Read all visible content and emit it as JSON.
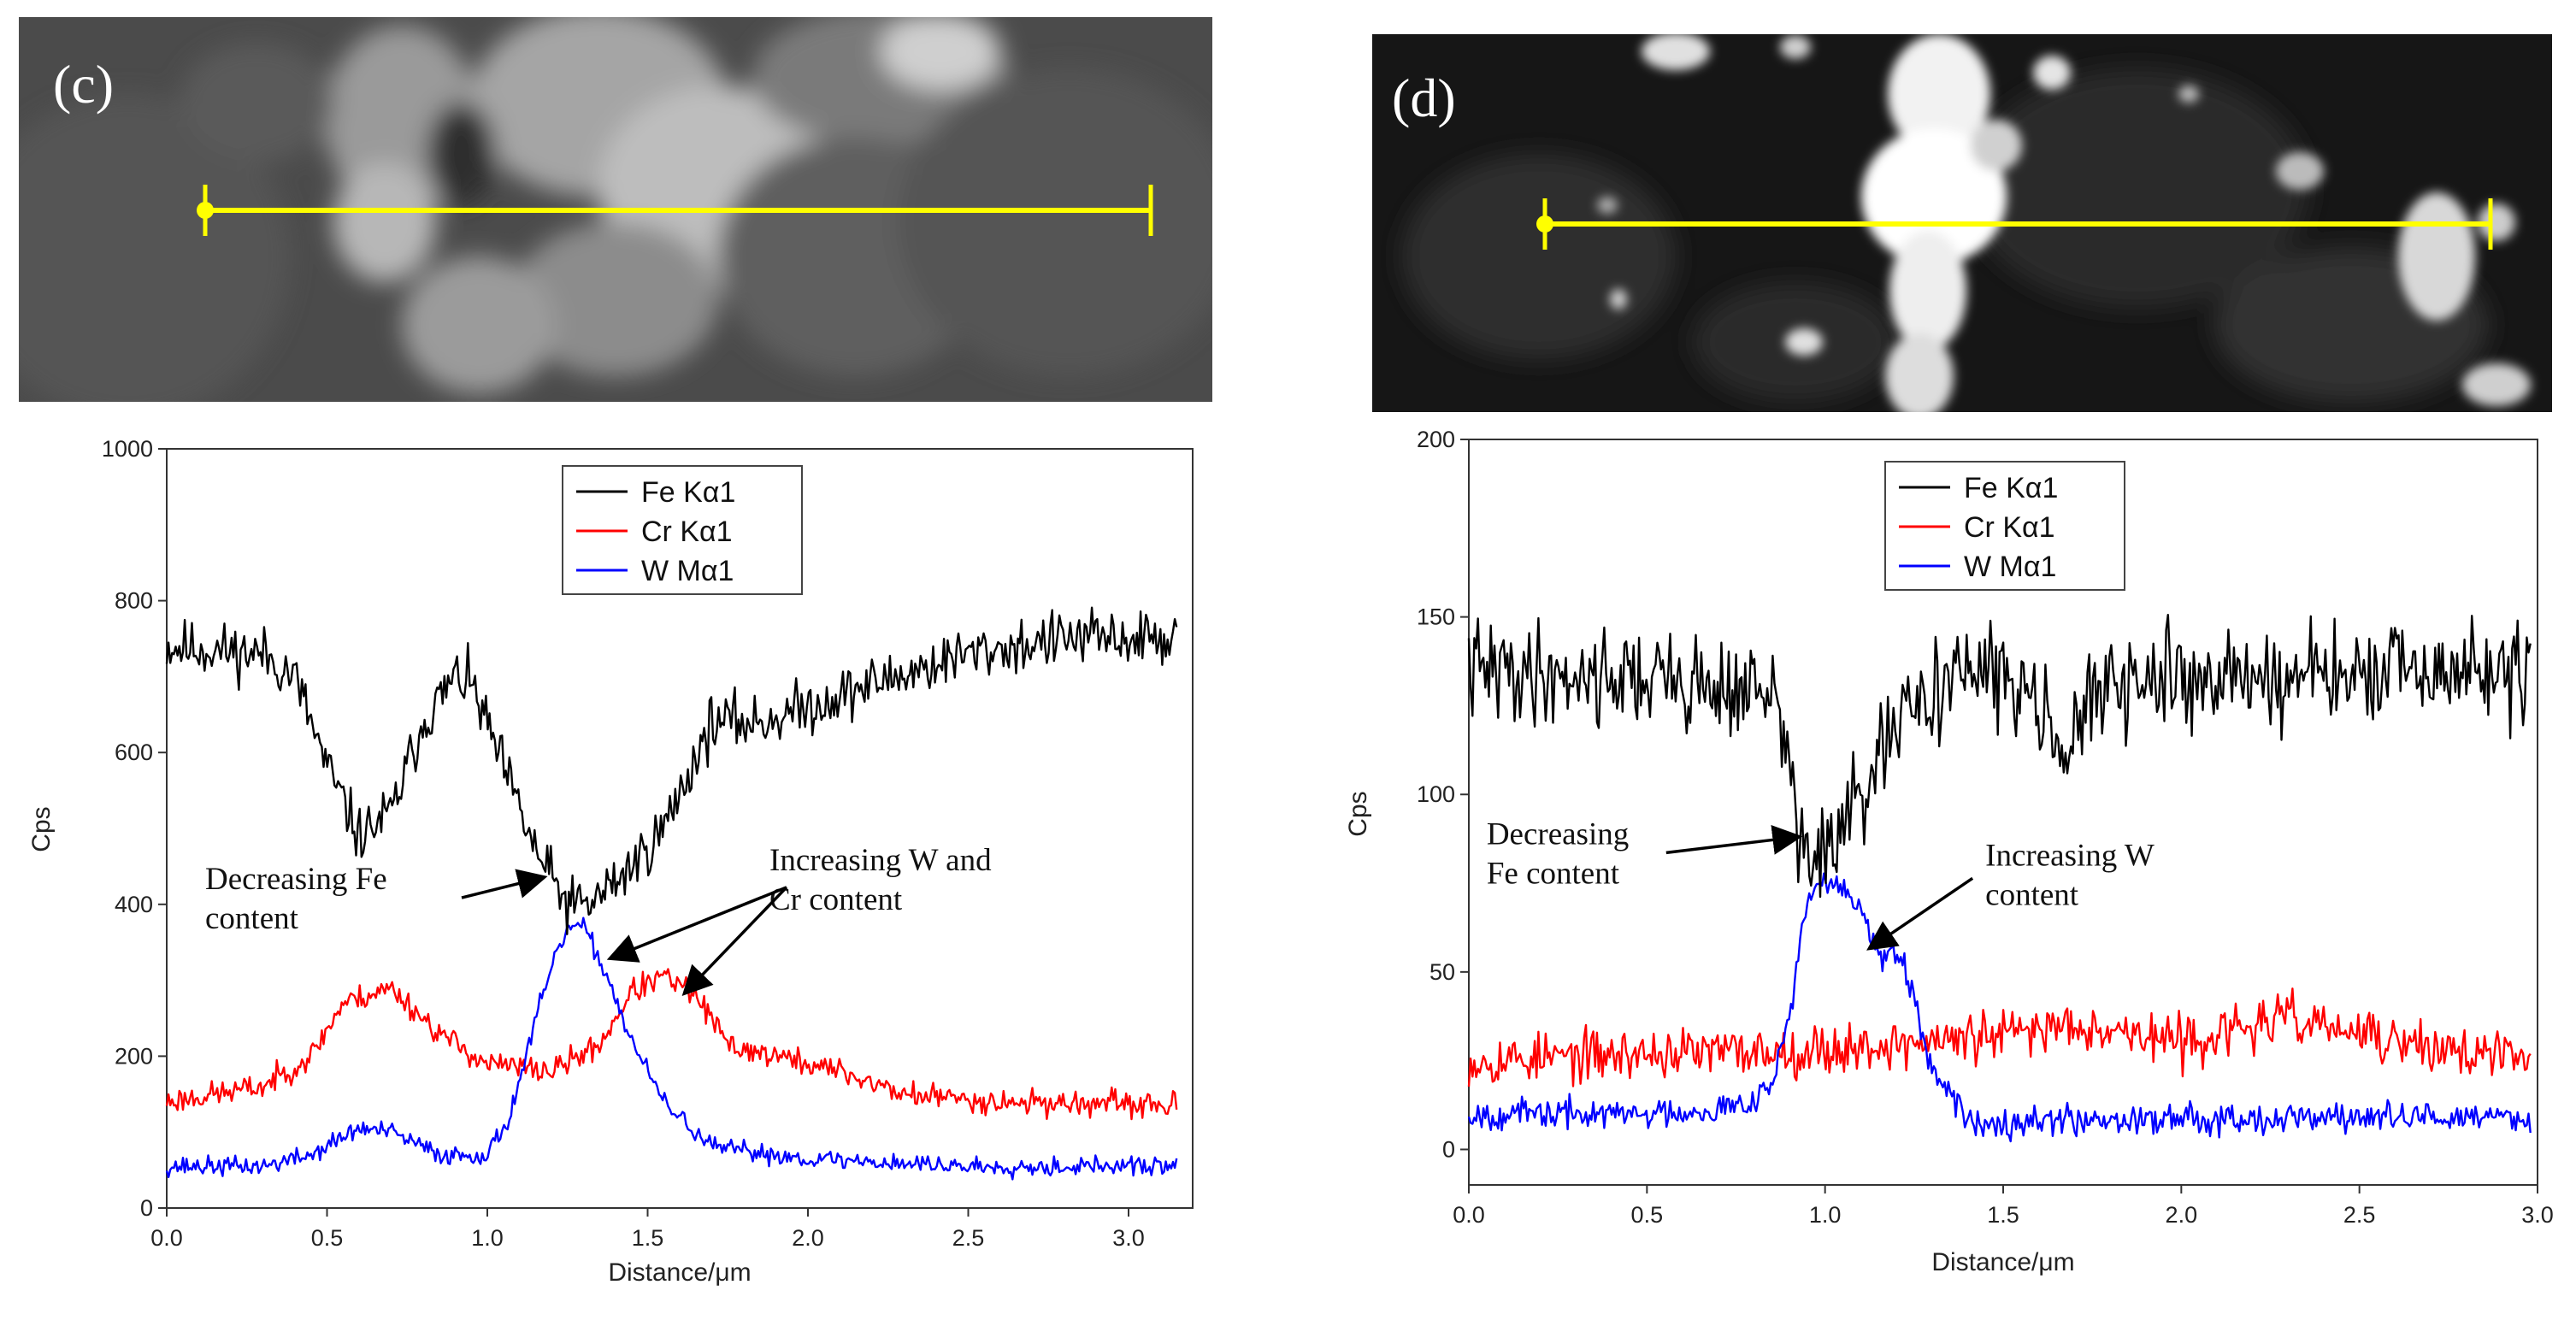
{
  "figure": {
    "type": "composite",
    "panels": [
      "(c)",
      "(d)"
    ]
  },
  "colors": {
    "fe": "#000000",
    "cr": "#ff0000",
    "w": "#0000ff",
    "scan_line": "#ffff00"
  },
  "chart_data": [
    {
      "panel_label": "(c)",
      "type": "line",
      "xlabel": "Distance/μm",
      "ylabel": "Cps",
      "xlim": [
        0,
        3.2
      ],
      "ylim": [
        0,
        1000
      ],
      "xticks": [
        0.0,
        0.5,
        1.0,
        1.5,
        2.0,
        2.5,
        3.0
      ],
      "xtick_labels": [
        "0.0",
        "0.5",
        "1.0",
        "1.5",
        "2.0",
        "2.5",
        "3.0"
      ],
      "yticks": [
        0,
        200,
        400,
        600,
        800,
        1000
      ],
      "ytick_labels": [
        "0",
        "200",
        "400",
        "600",
        "800",
        "1000"
      ],
      "x_end": 3.15,
      "legend_position": "top-center",
      "series": [
        {
          "name": "Fe  Kα1",
          "color": "#000000",
          "seed": 11,
          "noise": 26,
          "sample_count": 560,
          "profile": [
            [
              0.0,
              740
            ],
            [
              0.15,
              735
            ],
            [
              0.3,
              730
            ],
            [
              0.4,
              700
            ],
            [
              0.5,
              580
            ],
            [
              0.6,
              490
            ],
            [
              0.7,
              520
            ],
            [
              0.8,
              640
            ],
            [
              0.9,
              700
            ],
            [
              0.95,
              690
            ],
            [
              1.05,
              580
            ],
            [
              1.15,
              470
            ],
            [
              1.25,
              400
            ],
            [
              1.32,
              400
            ],
            [
              1.45,
              450
            ],
            [
              1.55,
              500
            ],
            [
              1.7,
              640
            ],
            [
              1.85,
              640
            ],
            [
              2.0,
              660
            ],
            [
              2.2,
              690
            ],
            [
              2.5,
              730
            ],
            [
              2.8,
              750
            ],
            [
              3.15,
              750
            ]
          ]
        },
        {
          "name": "Cr  Kα1",
          "color": "#ff0000",
          "seed": 23,
          "noise": 12,
          "sample_count": 560,
          "profile": [
            [
              0.0,
              140
            ],
            [
              0.3,
              160
            ],
            [
              0.45,
              200
            ],
            [
              0.55,
              270
            ],
            [
              0.7,
              290
            ],
            [
              0.85,
              230
            ],
            [
              1.0,
              190
            ],
            [
              1.2,
              180
            ],
            [
              1.35,
              215
            ],
            [
              1.45,
              285
            ],
            [
              1.55,
              305
            ],
            [
              1.65,
              280
            ],
            [
              1.75,
              215
            ],
            [
              1.9,
              200
            ],
            [
              2.1,
              180
            ],
            [
              2.3,
              150
            ],
            [
              2.6,
              140
            ],
            [
              3.15,
              135
            ]
          ]
        },
        {
          "name": "W  Mα1",
          "color": "#0000ff",
          "seed": 37,
          "noise": 9,
          "sample_count": 560,
          "profile": [
            [
              0.0,
              55
            ],
            [
              0.3,
              55
            ],
            [
              0.45,
              70
            ],
            [
              0.6,
              105
            ],
            [
              0.7,
              100
            ],
            [
              0.85,
              70
            ],
            [
              1.0,
              70
            ],
            [
              1.07,
              120
            ],
            [
              1.12,
              200
            ],
            [
              1.18,
              290
            ],
            [
              1.25,
              370
            ],
            [
              1.3,
              370
            ],
            [
              1.37,
              310
            ],
            [
              1.45,
              220
            ],
            [
              1.55,
              140
            ],
            [
              1.7,
              80
            ],
            [
              2.0,
              65
            ],
            [
              2.5,
              55
            ],
            [
              3.15,
              55
            ]
          ]
        }
      ],
      "legend": [
        "Fe  Kα1",
        "Cr  Kα1",
        "W  Mα1"
      ],
      "annotations": [
        {
          "lines": [
            "Decreasing Fe",
            "content"
          ],
          "text_x": 0.12,
          "text_y": 420,
          "arrows_to": [
            [
              1.17,
              435
            ]
          ]
        },
        {
          "lines": [
            "Increasing W and",
            "Cr content"
          ],
          "text_x": 1.88,
          "text_y": 445,
          "arrows_to": [
            [
              1.39,
              330
            ],
            [
              1.62,
              285
            ]
          ]
        }
      ]
    },
    {
      "panel_label": "(d)",
      "type": "line",
      "xlabel": "Distance/μm",
      "ylabel": "Cps",
      "xlim": [
        0,
        3.0
      ],
      "ylim": [
        -10,
        200
      ],
      "xticks": [
        0.0,
        0.5,
        1.0,
        1.5,
        2.0,
        2.5,
        3.0
      ],
      "xtick_labels": [
        "0.0",
        "0.5",
        "1.0",
        "1.5",
        "2.0",
        "2.5",
        "3.0"
      ],
      "yticks": [
        0,
        50,
        100,
        150,
        200
      ],
      "ytick_labels": [
        "0",
        "50",
        "100",
        "150",
        "200"
      ],
      "x_end": 2.98,
      "legend_position": "top-center",
      "series": [
        {
          "name": "Fe  Kα1",
          "color": "#000000",
          "seed": 41,
          "noise": 10,
          "sample_count": 580,
          "profile": [
            [
              0.0,
              135
            ],
            [
              0.5,
              133
            ],
            [
              0.85,
              128
            ],
            [
              0.9,
              110
            ],
            [
              0.93,
              85
            ],
            [
              1.0,
              82
            ],
            [
              1.08,
              95
            ],
            [
              1.2,
              118
            ],
            [
              1.35,
              135
            ],
            [
              1.6,
              130
            ],
            [
              1.68,
              110
            ],
            [
              1.75,
              128
            ],
            [
              2.0,
              133
            ],
            [
              2.5,
              133
            ],
            [
              2.98,
              135
            ]
          ]
        },
        {
          "name": "Cr  Kα1",
          "color": "#ff0000",
          "seed": 53,
          "noise": 5,
          "sample_count": 580,
          "profile": [
            [
              0.0,
              25
            ],
            [
              0.5,
              27
            ],
            [
              1.0,
              28
            ],
            [
              1.5,
              32
            ],
            [
              1.7,
              36
            ],
            [
              2.0,
              30
            ],
            [
              2.3,
              37
            ],
            [
              2.6,
              30
            ],
            [
              2.98,
              25
            ]
          ]
        },
        {
          "name": "W  Mα1",
          "color": "#0000ff",
          "seed": 67,
          "noise": 3,
          "sample_count": 580,
          "profile": [
            [
              0.0,
              10
            ],
            [
              0.5,
              10
            ],
            [
              0.75,
              12
            ],
            [
              0.85,
              18
            ],
            [
              0.9,
              38
            ],
            [
              0.95,
              70
            ],
            [
              1.0,
              75
            ],
            [
              1.08,
              72
            ],
            [
              1.15,
              55
            ],
            [
              1.22,
              52
            ],
            [
              1.3,
              22
            ],
            [
              1.4,
              8
            ],
            [
              2.0,
              9
            ],
            [
              2.98,
              9
            ]
          ]
        }
      ],
      "legend": [
        "Fe  Kα1",
        "Cr  Kα1",
        "W  Mα1"
      ],
      "annotations": [
        {
          "lines": [
            "Decreasing",
            "Fe content"
          ],
          "text_x": 0.05,
          "text_y": 86,
          "arrows_to": [
            [
              0.92,
              88
            ]
          ]
        },
        {
          "lines": [
            "Increasing W",
            "content"
          ],
          "text_x": 1.45,
          "text_y": 80,
          "arrows_to": [
            [
              1.13,
              57
            ]
          ]
        }
      ]
    }
  ]
}
